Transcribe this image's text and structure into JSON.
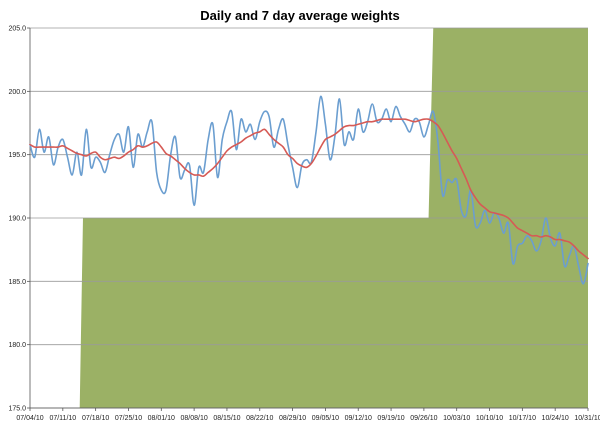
{
  "chart_data": {
    "type": "line",
    "title": "Daily and  7 day average weights",
    "xlabel": "",
    "ylabel": "",
    "ylim": [
      175.0,
      205.0
    ],
    "yticks": [
      "175.0",
      "180.0",
      "185.0",
      "190.0",
      "195.0",
      "200.0",
      "205.0"
    ],
    "xlim": [
      0,
      119
    ],
    "x_ticks": [
      {
        "x": 0,
        "label": "07/04/10"
      },
      {
        "x": 7,
        "label": "07/11/10"
      },
      {
        "x": 14,
        "label": "07/18/10"
      },
      {
        "x": 21,
        "label": "07/25/10"
      },
      {
        "x": 28,
        "label": "08/01/10"
      },
      {
        "x": 35,
        "label": "08/08/10"
      },
      {
        "x": 42,
        "label": "08/15/10"
      },
      {
        "x": 49,
        "label": "08/22/10"
      },
      {
        "x": 56,
        "label": "08/29/10"
      },
      {
        "x": 63,
        "label": "09/05/10"
      },
      {
        "x": 70,
        "label": "09/12/10"
      },
      {
        "x": 77,
        "label": "09/19/10"
      },
      {
        "x": 84,
        "label": "09/26/10"
      },
      {
        "x": 91,
        "label": "10/03/10"
      },
      {
        "x": 98,
        "label": "10/10/10"
      },
      {
        "x": 105,
        "label": "10/17/10"
      },
      {
        "x": 112,
        "label": "10/24/10"
      },
      {
        "x": 119,
        "label": "10/31/10"
      }
    ],
    "grid": "horizontal",
    "colors": {
      "daily": "#6b9ed0",
      "average": "#d65a55",
      "area": "#9bb165",
      "grid": "#9a9a9a"
    },
    "area": {
      "name": "",
      "x": [
        10.6,
        11.3,
        85.0,
        86.0,
        119.0
      ],
      "values": [
        175.0,
        190.0,
        190.0,
        205.0,
        205.0
      ]
    },
    "series": [
      {
        "name": "",
        "x": [
          0,
          1,
          2,
          3,
          4,
          5,
          6,
          7,
          8,
          9,
          10,
          11,
          12,
          13,
          14,
          15,
          16,
          17,
          18,
          19,
          20,
          21,
          22,
          23,
          24,
          25,
          26,
          27,
          28,
          29,
          30,
          31,
          32,
          33,
          34,
          35,
          36,
          37,
          38,
          39,
          40,
          41,
          42,
          43,
          44,
          45,
          46,
          47,
          48,
          49,
          50,
          51,
          52,
          53,
          54,
          55,
          56,
          57,
          58,
          59,
          60,
          61,
          62,
          63,
          64,
          65,
          66,
          67,
          68,
          69,
          70,
          71,
          72,
          73,
          74,
          75,
          76,
          77,
          78,
          79,
          80,
          81,
          82,
          83,
          84,
          85,
          86,
          87,
          88,
          89,
          90,
          91,
          92,
          93,
          94,
          95,
          96,
          97,
          98,
          99,
          100,
          101,
          102,
          103,
          104,
          105,
          106,
          107,
          108,
          109,
          110,
          111,
          112,
          113,
          114,
          115,
          116,
          117,
          118,
          119
        ],
        "values": [
          195.8,
          194.8,
          197.0,
          195.2,
          196.4,
          194.2,
          195.6,
          196.2,
          194.8,
          193.4,
          195.2,
          193.4,
          197.0,
          194.0,
          194.8,
          194.4,
          193.6,
          195.0,
          196.2,
          196.6,
          195.2,
          197.2,
          194.0,
          196.6,
          195.6,
          196.8,
          197.6,
          193.6,
          192.2,
          192.2,
          195.0,
          196.4,
          193.2,
          193.8,
          194.2,
          191.0,
          194.0,
          193.6,
          196.2,
          197.4,
          193.2,
          196.2,
          197.6,
          198.4,
          195.4,
          197.8,
          196.8,
          197.4,
          196.2,
          197.6,
          198.4,
          198.0,
          195.6,
          197.0,
          197.8,
          195.8,
          194.0,
          192.4,
          194.2,
          194.6,
          194.4,
          196.8,
          199.6,
          197.4,
          194.6,
          196.4,
          199.4,
          195.8,
          196.8,
          196.2,
          198.6,
          196.8,
          197.6,
          199.0,
          197.6,
          197.8,
          198.6,
          197.6,
          198.8,
          198.0,
          197.4,
          196.8,
          197.8,
          197.6,
          196.4,
          197.4,
          198.4,
          196.0,
          191.8,
          193.0,
          192.8,
          193.0,
          190.6,
          190.2,
          192.2,
          189.4,
          189.6,
          190.6,
          189.6,
          190.4,
          190.0,
          188.8,
          189.6,
          186.4,
          187.8,
          188.0,
          188.6,
          188.2,
          187.4,
          188.2,
          190.0,
          188.4,
          187.8,
          188.8,
          186.2,
          187.0,
          187.8,
          186.2,
          184.8,
          186.4
        ]
      },
      {
        "name": "",
        "x": [
          0,
          1,
          2,
          3,
          4,
          5,
          6,
          7,
          8,
          9,
          10,
          11,
          12,
          13,
          14,
          15,
          16,
          17,
          18,
          19,
          20,
          21,
          22,
          23,
          24,
          25,
          26,
          27,
          28,
          29,
          30,
          31,
          32,
          33,
          34,
          35,
          36,
          37,
          38,
          39,
          40,
          41,
          42,
          43,
          44,
          45,
          46,
          47,
          48,
          49,
          50,
          51,
          52,
          53,
          54,
          55,
          56,
          57,
          58,
          59,
          60,
          61,
          62,
          63,
          64,
          65,
          66,
          67,
          68,
          69,
          70,
          71,
          72,
          73,
          74,
          75,
          76,
          77,
          78,
          79,
          80,
          81,
          82,
          83,
          84,
          85,
          86,
          87,
          88,
          89,
          90,
          91,
          92,
          93,
          94,
          95,
          96,
          97,
          98,
          99,
          100,
          101,
          102,
          103,
          104,
          105,
          106,
          107,
          108,
          109,
          110,
          111,
          112,
          113,
          114,
          115,
          116,
          117,
          118,
          119
        ],
        "values": [
          195.8,
          195.6,
          195.6,
          195.6,
          195.6,
          195.6,
          195.6,
          195.7,
          195.5,
          195.3,
          195.1,
          195.0,
          194.9,
          195.1,
          195.2,
          194.8,
          194.6,
          194.7,
          194.8,
          194.7,
          194.9,
          195.2,
          195.4,
          195.7,
          195.6,
          195.7,
          195.9,
          196.0,
          195.6,
          195.1,
          194.9,
          194.6,
          194.3,
          193.9,
          193.6,
          193.4,
          193.4,
          193.3,
          193.6,
          193.9,
          194.3,
          194.8,
          195.3,
          195.6,
          195.8,
          196.0,
          196.3,
          196.5,
          196.7,
          196.8,
          197.0,
          196.6,
          196.2,
          195.9,
          195.6,
          195.0,
          194.7,
          194.3,
          194.1,
          194.0,
          194.3,
          194.9,
          195.6,
          196.2,
          196.4,
          196.6,
          196.9,
          197.2,
          197.3,
          197.3,
          197.4,
          197.5,
          197.6,
          197.6,
          197.7,
          197.8,
          197.8,
          197.8,
          197.8,
          197.8,
          197.8,
          197.7,
          197.6,
          197.7,
          197.8,
          197.8,
          197.6,
          197.3,
          196.7,
          196.0,
          195.3,
          194.7,
          193.9,
          193.1,
          192.2,
          191.6,
          191.1,
          190.8,
          190.5,
          190.4,
          190.3,
          190.2,
          190.0,
          189.6,
          189.2,
          189.0,
          188.8,
          188.6,
          188.6,
          188.5,
          188.6,
          188.5,
          188.3,
          188.3,
          188.2,
          188.1,
          187.8,
          187.4,
          187.1,
          186.8
        ]
      }
    ]
  }
}
